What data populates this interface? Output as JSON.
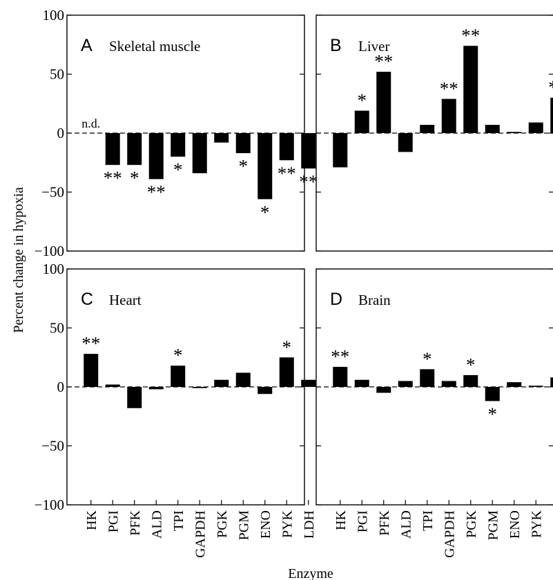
{
  "chart_data": {
    "type": "bar",
    "ylabel": "Percent change in hypoxia",
    "xlabel": "Enzyme",
    "ylim": [
      -100,
      100
    ],
    "yticks": [
      -100,
      -50,
      0,
      50,
      100
    ],
    "grid": false,
    "categories": [
      "HK",
      "PGI",
      "PFK",
      "ALD",
      "TPI",
      "GAPDH",
      "PGK",
      "PGM",
      "ENO",
      "PYK",
      "LDH"
    ],
    "panels": [
      {
        "letter": "A",
        "title": "Skeletal muscle",
        "values": [
          null,
          -27,
          -27,
          -39,
          -20,
          -34,
          -8,
          -17,
          -56,
          -23,
          -30
        ],
        "significance": [
          "",
          "**",
          "*",
          "**",
          "*",
          "",
          "",
          "*",
          "*",
          "**",
          "**"
        ],
        "notes": [
          {
            "category": "HK",
            "text": "n.d."
          }
        ]
      },
      {
        "letter": "B",
        "title": "Liver",
        "values": [
          -29,
          19,
          52,
          -16,
          7,
          29,
          74,
          7,
          1,
          9,
          30
        ],
        "significance": [
          "",
          "*",
          "**",
          "",
          "",
          "**",
          "**",
          "",
          "",
          "",
          "**"
        ],
        "notes": []
      },
      {
        "letter": "C",
        "title": "Heart",
        "values": [
          28,
          2,
          -18,
          -2,
          18,
          -1,
          6,
          12,
          -6,
          25,
          6
        ],
        "significance": [
          "**",
          "",
          "",
          "",
          "*",
          "",
          "",
          "",
          "",
          "*",
          ""
        ],
        "notes": []
      },
      {
        "letter": "D",
        "title": "Brain",
        "values": [
          17,
          6,
          -5,
          5,
          15,
          5,
          10,
          -12,
          4,
          1,
          8
        ],
        "significance": [
          "**",
          "",
          "",
          "",
          "*",
          "",
          "*",
          "*",
          "",
          "",
          ""
        ],
        "notes": []
      }
    ]
  }
}
